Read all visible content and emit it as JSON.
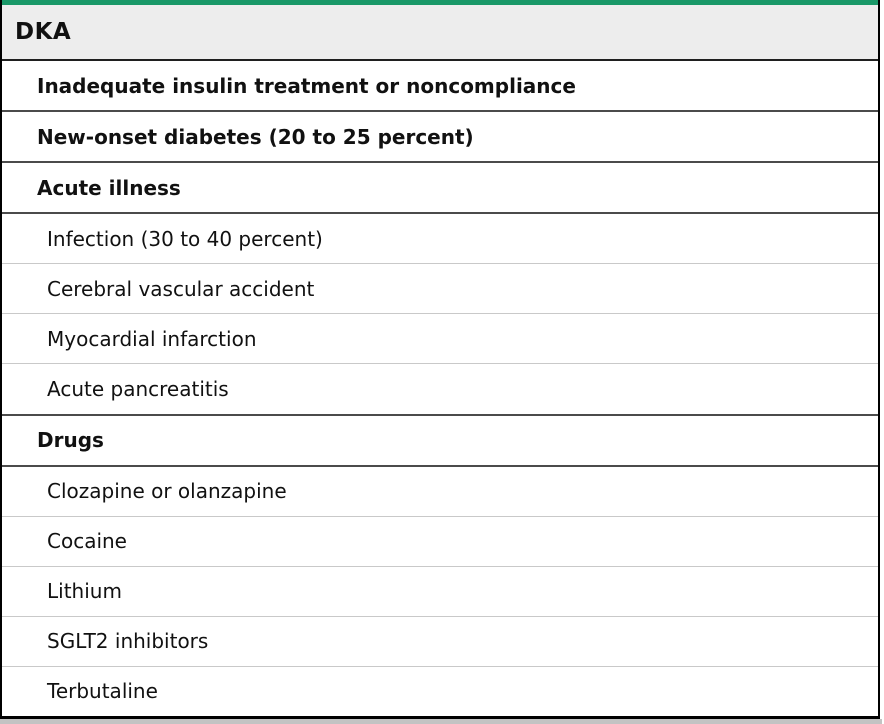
{
  "table": {
    "title": "DKA",
    "rows": [
      {
        "label": "Inadequate insulin treatment or noncompliance",
        "type": "section"
      },
      {
        "label": "New-onset diabetes (20 to 25 percent)",
        "type": "section"
      },
      {
        "label": "Acute illness",
        "type": "section"
      },
      {
        "label": "Infection (30 to 40 percent)",
        "type": "item"
      },
      {
        "label": "Cerebral vascular accident",
        "type": "item"
      },
      {
        "label": "Myocardial infarction",
        "type": "item"
      },
      {
        "label": "Acute pancreatitis",
        "type": "item"
      },
      {
        "label": "Drugs",
        "type": "section"
      },
      {
        "label": "Clozapine or olanzapine",
        "type": "item"
      },
      {
        "label": "Cocaine",
        "type": "item"
      },
      {
        "label": "Lithium",
        "type": "item"
      },
      {
        "label": "SGLT2 inhibitors",
        "type": "item"
      },
      {
        "label": "Terbutaline",
        "type": "item"
      }
    ],
    "colors": {
      "accent_green": "#199868",
      "header_bg": "#ededed",
      "text_color": "#111111",
      "outer_border": "#000000",
      "header_rule": "#1f1f1f",
      "divider_dark": "#4b4b4b",
      "divider_light": "#c9c9c9",
      "shadow_gray": "#c3c3c3"
    }
  }
}
